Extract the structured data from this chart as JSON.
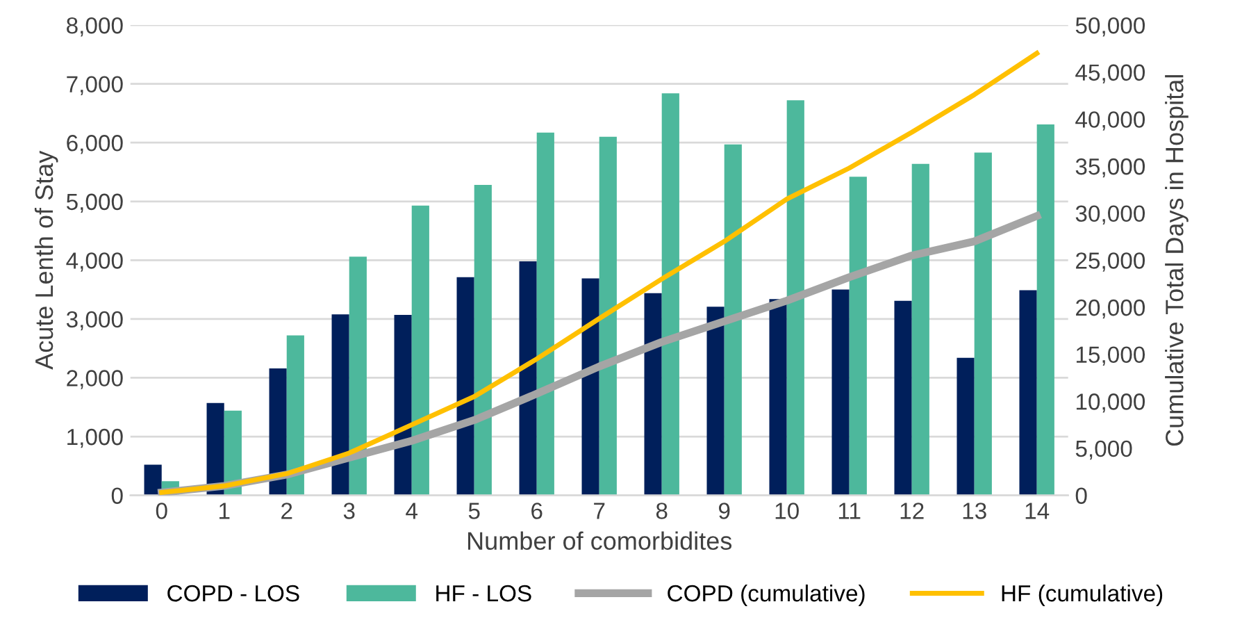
{
  "chart_data": {
    "type": "bar",
    "xlabel": "Number of comorbidites",
    "ylabel": "Acute Lenth of Stay",
    "y2label": "Cumulative Total Days in Hospital",
    "categories": [
      "0",
      "1",
      "2",
      "3",
      "4",
      "5",
      "6",
      "7",
      "8",
      "9",
      "10",
      "11",
      "12",
      "13",
      "14"
    ],
    "series": [
      {
        "name": "COPD - LOS",
        "color": "#001f5b",
        "values": [
          520,
          1570,
          2160,
          3080,
          3070,
          3710,
          3980,
          3690,
          3440,
          3210,
          3340,
          3500,
          3310,
          2340,
          3490
        ]
      },
      {
        "name": "HF - LOS",
        "color": "#4db89c",
        "values": [
          240,
          1440,
          2720,
          4060,
          4930,
          5280,
          6170,
          6100,
          6840,
          5970,
          6720,
          5420,
          5640,
          5830,
          6310
        ]
      },
      {
        "name": "COPD (cumulative)",
        "type": "line",
        "axis": "y2",
        "color": "#a5a5a5",
        "values": [
          300,
          1000,
          2200,
          4000,
          5800,
          8000,
          10800,
          13700,
          16300,
          18500,
          20700,
          23200,
          25500,
          27000,
          29700
        ]
      },
      {
        "name": "HF (cumulative)",
        "type": "line",
        "axis": "y2",
        "color": "#ffc000",
        "values": [
          300,
          1000,
          2300,
          4500,
          7500,
          10500,
          14500,
          18800,
          23000,
          27000,
          31500,
          34800,
          38600,
          42600,
          47000
        ]
      }
    ],
    "ylim": [
      0,
      8000
    ],
    "yticks": [
      {
        "value": 0,
        "label": "0"
      },
      {
        "value": 1000,
        "label": "1,000"
      },
      {
        "value": 2000,
        "label": "2,000"
      },
      {
        "value": 3000,
        "label": "3,000"
      },
      {
        "value": 4000,
        "label": "4,000"
      },
      {
        "value": 5000,
        "label": "5,000"
      },
      {
        "value": 6000,
        "label": "6,000"
      },
      {
        "value": 7000,
        "label": "7,000"
      },
      {
        "value": 8000,
        "label": "8,000"
      }
    ],
    "y2lim": [
      0,
      50000
    ],
    "y2ticks": [
      {
        "value": 0,
        "label": "0"
      },
      {
        "value": 5000,
        "label": "5,000"
      },
      {
        "value": 10000,
        "label": "10,000"
      },
      {
        "value": 15000,
        "label": "15,000"
      },
      {
        "value": 20000,
        "label": "20,000"
      },
      {
        "value": 25000,
        "label": "25,000"
      },
      {
        "value": 30000,
        "label": "30,000"
      },
      {
        "value": 35000,
        "label": "35,000"
      },
      {
        "value": 40000,
        "label": "40,000"
      },
      {
        "value": 45000,
        "label": "45,000"
      },
      {
        "value": 50000,
        "label": "50,000"
      }
    ],
    "grid": "y",
    "legend": "bottom",
    "marker": "none",
    "line_style": "solid"
  }
}
